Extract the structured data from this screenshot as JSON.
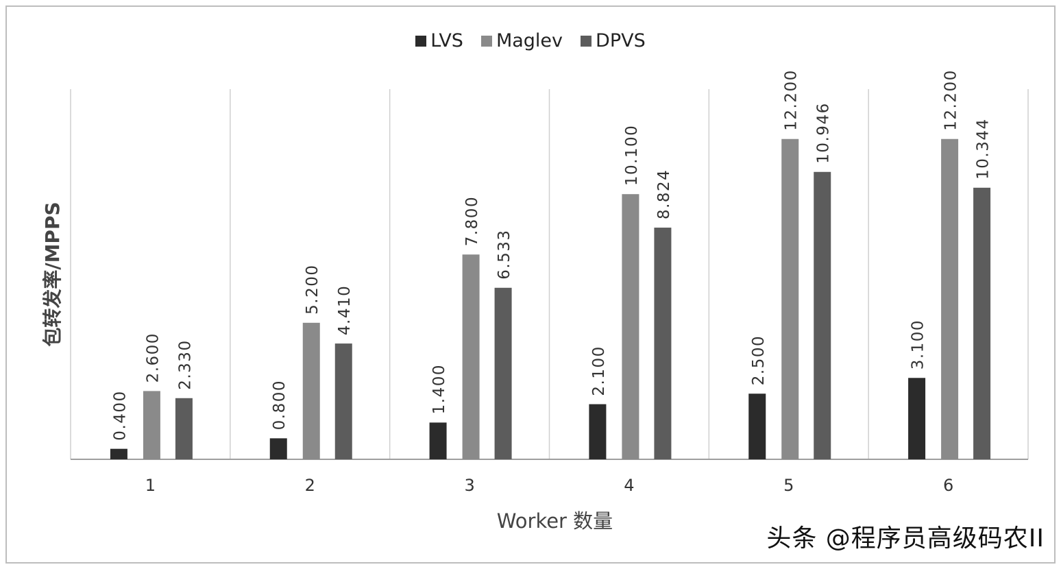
{
  "chart_data": {
    "type": "bar",
    "title": "",
    "xlabel": "Worker 数量",
    "ylabel": "包转发率/MPPS",
    "ylim": [
      0,
      14
    ],
    "grid": "vertical category separators",
    "legend_position": "top-center",
    "categories": [
      "1",
      "2",
      "3",
      "4",
      "5",
      "6"
    ],
    "series": [
      {
        "name": "LVS",
        "color": "#2b2b2b",
        "values": [
          0.4,
          0.8,
          1.4,
          2.1,
          2.5,
          3.1
        ],
        "labels": [
          "0.400",
          "0.800",
          "1.400",
          "2.100",
          "2.500",
          "3.100"
        ]
      },
      {
        "name": "Maglev",
        "color": "#8a8a8a",
        "values": [
          2.6,
          5.2,
          7.8,
          10.1,
          12.2,
          12.2
        ],
        "labels": [
          "2.600",
          "5.200",
          "7.800",
          "10.100",
          "12.200",
          "12.200"
        ]
      },
      {
        "name": "DPVS",
        "color": "#5c5c5c",
        "values": [
          2.33,
          4.41,
          6.533,
          8.824,
          10.946,
          10.344
        ],
        "labels": [
          "2.330",
          "4.410",
          "6.533",
          "8.824",
          "10.946",
          "10.344"
        ]
      }
    ]
  },
  "watermark": {
    "text": "头条 @程序员高级码农II"
  }
}
